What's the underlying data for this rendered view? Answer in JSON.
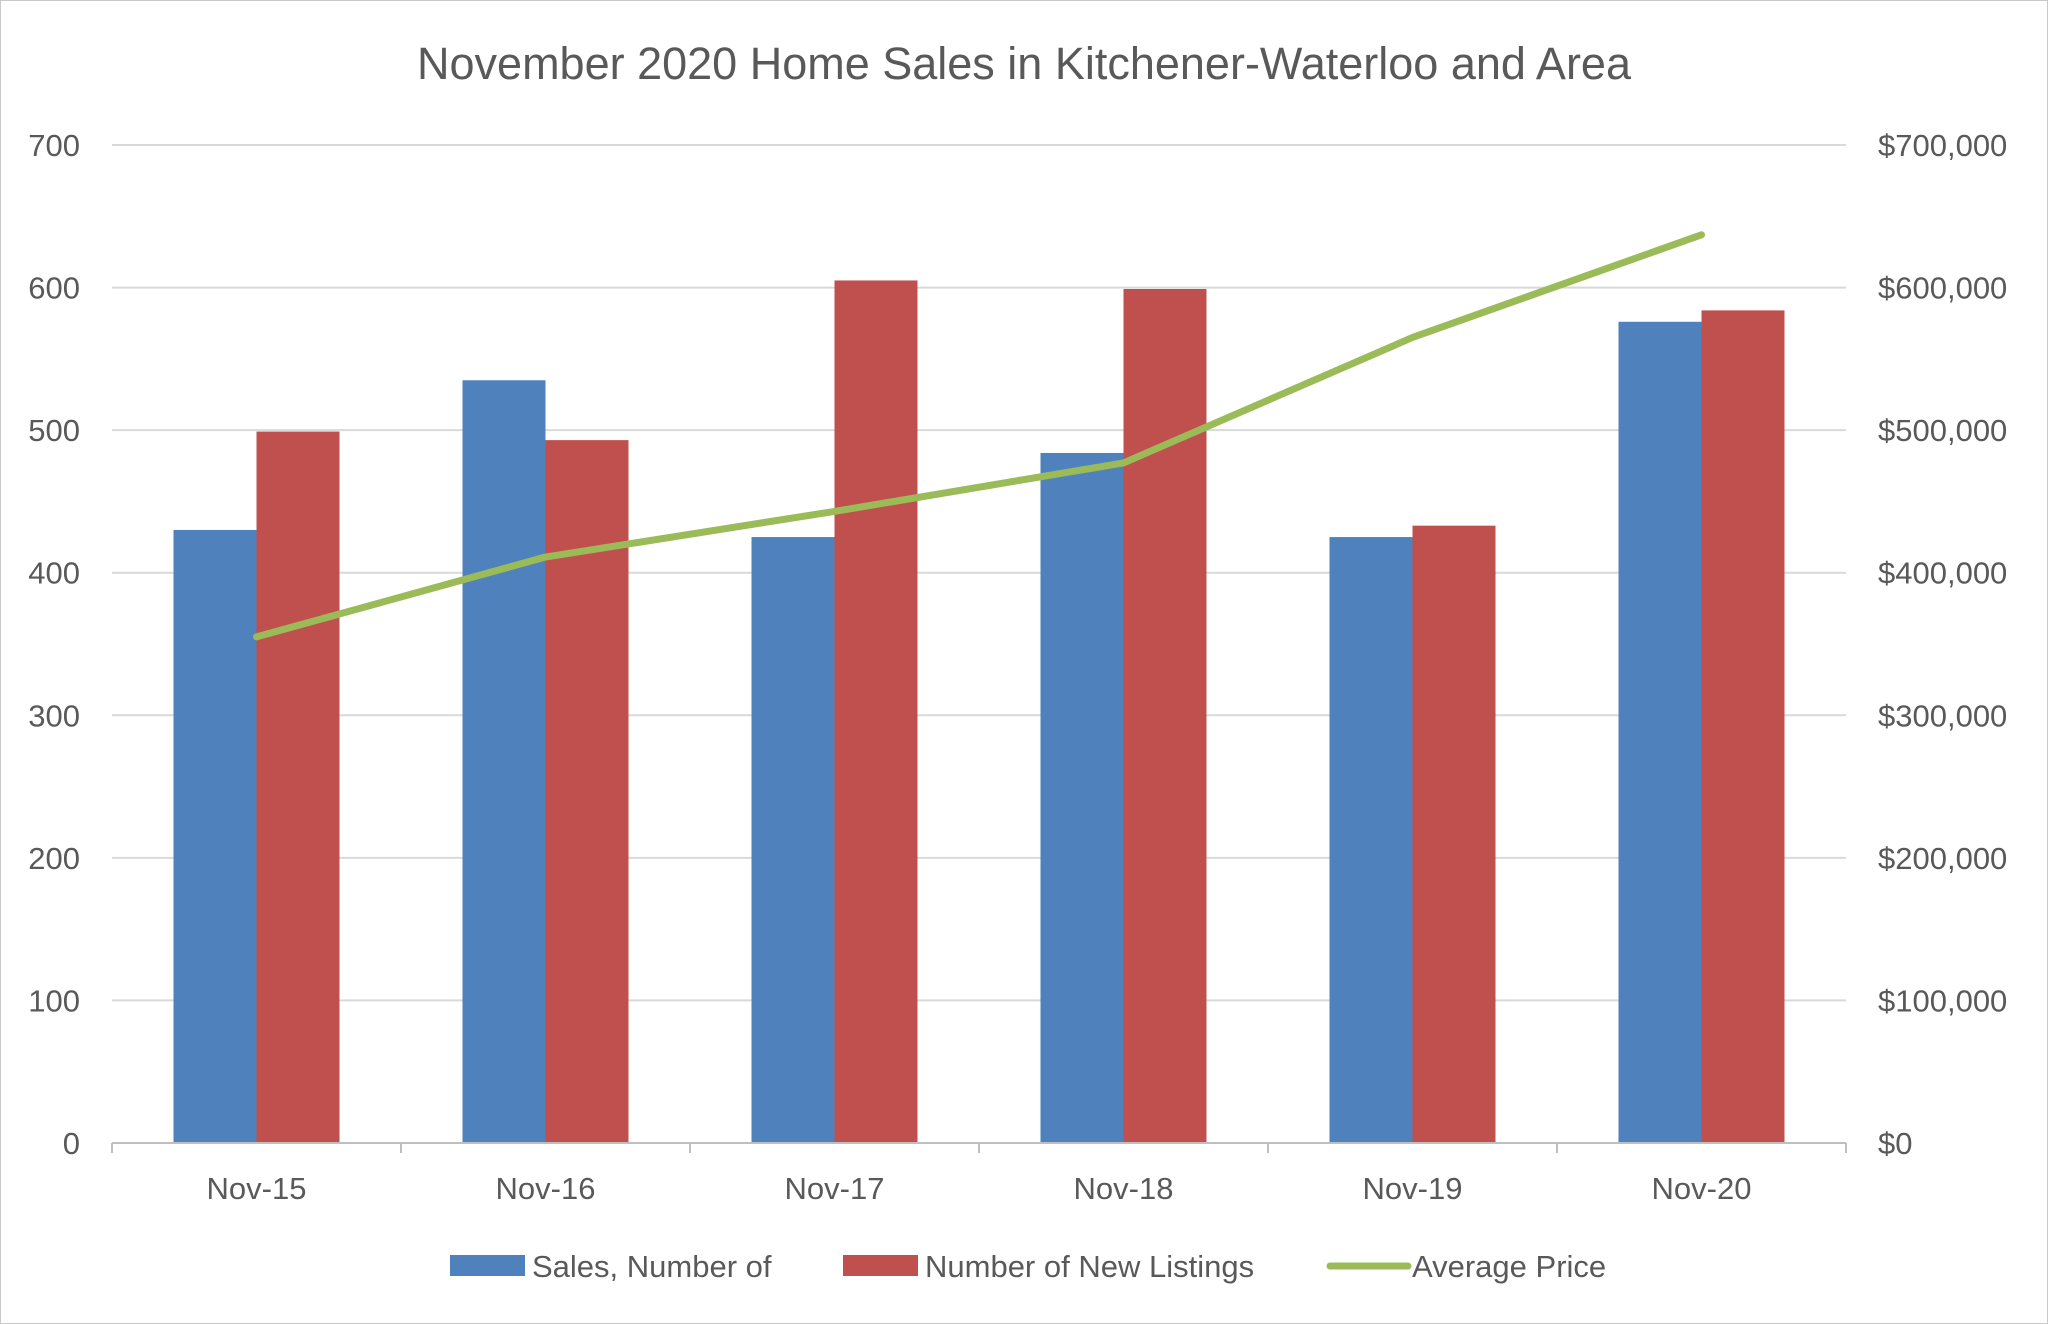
{
  "chart_data": {
    "type": "bar",
    "title": "November 2020 Home Sales in Kitchener-Waterloo and Area",
    "categories": [
      "Nov-15",
      "Nov-16",
      "Nov-17",
      "Nov-18",
      "Nov-19",
      "Nov-20"
    ],
    "series": [
      {
        "name": "Sales, Number of",
        "type": "bar",
        "axis": "left",
        "color": "#4f81bd",
        "values": [
          430,
          535,
          425,
          484,
          425,
          576
        ]
      },
      {
        "name": "Number of New Listings",
        "type": "bar",
        "axis": "left",
        "color": "#c0504d",
        "values": [
          499,
          493,
          605,
          599,
          433,
          584
        ]
      },
      {
        "name": "Average Price",
        "type": "line",
        "axis": "right",
        "color": "#9bbb59",
        "values": [
          355000,
          411000,
          443000,
          477000,
          565000,
          637000
        ]
      }
    ],
    "y_left": {
      "min": 0,
      "max": 700,
      "ticks": [
        0,
        100,
        200,
        300,
        400,
        500,
        600,
        700
      ],
      "tick_labels": [
        "0",
        "100",
        "200",
        "300",
        "400",
        "500",
        "600",
        "700"
      ]
    },
    "y_right": {
      "min": 0,
      "max": 700000,
      "ticks": [
        0,
        100000,
        200000,
        300000,
        400000,
        500000,
        600000,
        700000
      ],
      "tick_labels": [
        "$0",
        "$100,000",
        "$200,000",
        "$300,000",
        "$400,000",
        "$500,000",
        "$600,000",
        "$700,000"
      ]
    },
    "grid": true,
    "legend": "bottom"
  }
}
